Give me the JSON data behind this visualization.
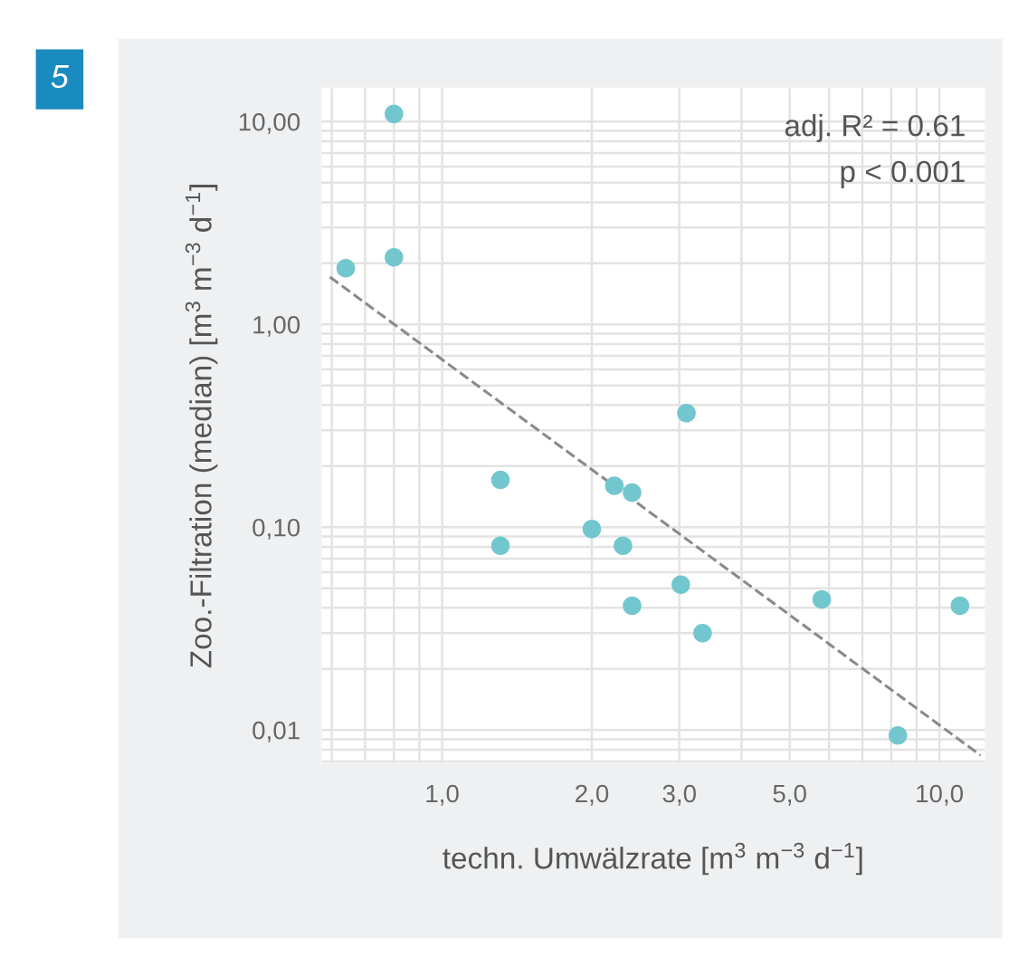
{
  "chart_data": {
    "type": "scatter",
    "xlabel": "techn. Umwälzrate [m$^{3}$ m$^{−3}$ d$^{−1}$]",
    "ylabel": "Zoo.-Filtration (median) [m$^{3}$ m$^{−3}$ d$^{−1}$]",
    "log": "xy",
    "grid": true,
    "marker": "circle",
    "xlim": [
      0.57,
      12.4
    ],
    "ylim": [
      0.0068,
      14.8
    ],
    "xticks": [
      {
        "value": 1,
        "label": "1,0"
      },
      {
        "value": 2,
        "label": "2,0"
      },
      {
        "value": 3,
        "label": "3,0"
      },
      {
        "value": 5,
        "label": "5,0"
      },
      {
        "value": 10,
        "label": "10,0"
      }
    ],
    "yticks": [
      {
        "value": 0.01,
        "label": "0,01"
      },
      {
        "value": 0.1,
        "label": "0,10"
      },
      {
        "value": 1,
        "label": "1,00"
      },
      {
        "value": 10,
        "label": "10,00"
      }
    ],
    "series": [
      {
        "color": "#72c7ce",
        "x": [
          0.64,
          0.8,
          0.8,
          1.31,
          1.31,
          2.22,
          2.41,
          2.0,
          2.31,
          3.1,
          3.02,
          2.41,
          3.34,
          5.8,
          8.25,
          11.0
        ],
        "values": [
          1.89,
          10.9,
          2.14,
          0.171,
          0.081,
          0.16,
          0.148,
          0.098,
          0.081,
          0.365,
          0.052,
          0.041,
          0.03,
          0.044,
          0.0094,
          0.041
        ]
      },
      {
        "type": "line",
        "color": "#8a8a8a",
        "line_style": "dashed",
        "marker": "none",
        "x": [
          0.595,
          12.1
        ],
        "values": [
          1.71,
          0.0075
        ]
      }
    ],
    "annotations": [
      "5",
      "adj. R² = 0.61",
      "p < 0.001"
    ]
  }
}
